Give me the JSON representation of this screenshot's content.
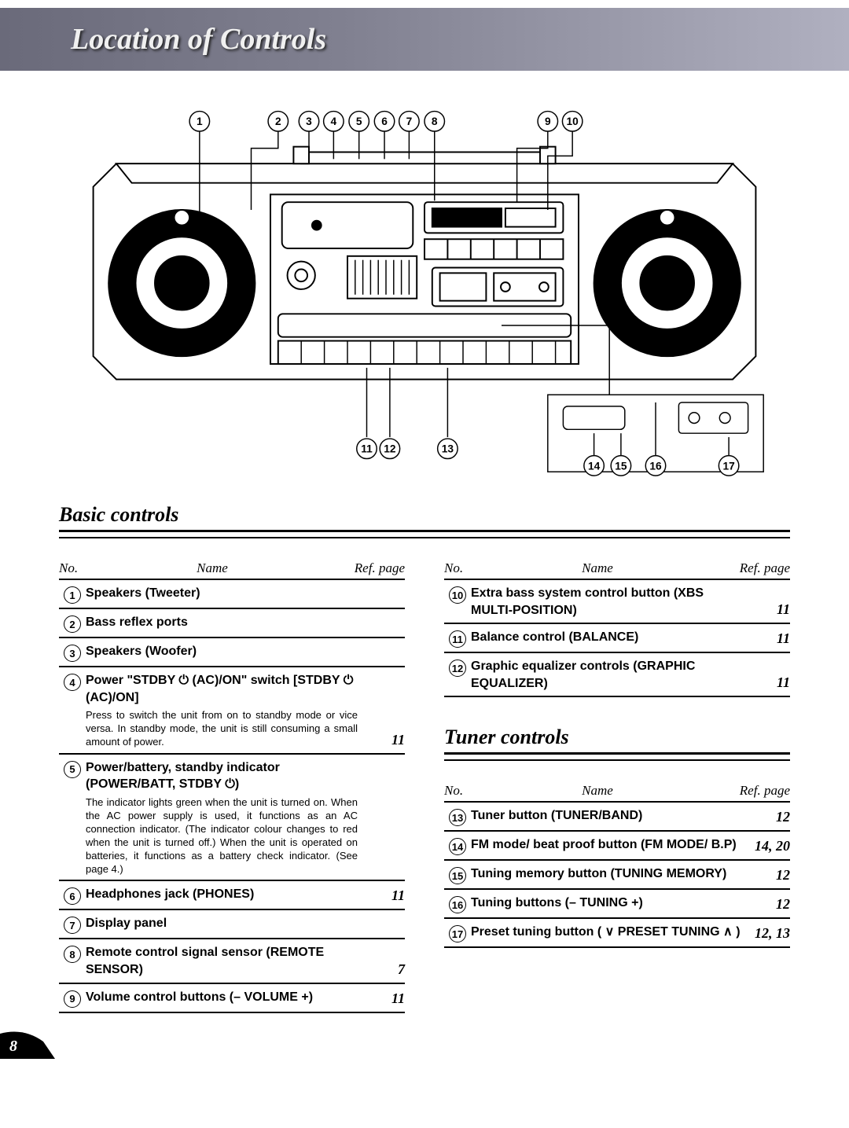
{
  "header": {
    "title": "Location of Controls"
  },
  "diagram": {
    "top_callouts": [
      1,
      2,
      3,
      4,
      5,
      6,
      7,
      8,
      9,
      10
    ],
    "bottom_callouts": [
      11,
      12,
      13,
      14,
      15,
      16,
      17
    ]
  },
  "sections": {
    "basic": {
      "title": "Basic controls",
      "columns_header": {
        "no": "No.",
        "name": "Name",
        "page": "Ref. page"
      },
      "left": [
        {
          "num": 1,
          "name": "Speakers (Tweeter)",
          "page": ""
        },
        {
          "num": 2,
          "name": "Bass reflex ports",
          "page": ""
        },
        {
          "num": 3,
          "name": "Speakers (Woofer)",
          "page": ""
        },
        {
          "num": 4,
          "name": "Power \"STDBY ⏻ (AC)/ON\" switch [STDBY ⏻ (AC)/ON]",
          "page": "11",
          "desc": "Press to switch the unit from on to standby mode or vice versa. In standby mode, the unit is still consuming a small amount of power."
        },
        {
          "num": 5,
          "name": "Power/battery, standby indicator (POWER/BATT, STDBY ⏻)",
          "page": "",
          "desc": "The indicator lights green when the unit is turned on. When the AC power supply is used, it functions as an AC connection indicator. (The indicator colour changes to red when the unit is turned off.) When the unit is operated on batteries, it functions as a battery check indicator. (See page 4.)"
        },
        {
          "num": 6,
          "name": "Headphones jack (PHONES)",
          "page": "11"
        },
        {
          "num": 7,
          "name": "Display panel",
          "page": ""
        },
        {
          "num": 8,
          "name": "Remote control signal sensor (REMOTE SENSOR)",
          "page": "7"
        },
        {
          "num": 9,
          "name": "Volume control buttons (– VOLUME +)",
          "page": "11"
        }
      ],
      "right": [
        {
          "num": 10,
          "name": "Extra bass system control button (XBS MULTI-POSITION)",
          "page": "11"
        },
        {
          "num": 11,
          "name": "Balance control (BALANCE)",
          "page": "11"
        },
        {
          "num": 12,
          "name": "Graphic equalizer controls (GRAPHIC EQUALIZER)",
          "page": "11"
        }
      ]
    },
    "tuner": {
      "title": "Tuner controls",
      "columns_header": {
        "no": "No.",
        "name": "Name",
        "page": "Ref. page"
      },
      "items": [
        {
          "num": 13,
          "name": "Tuner button (TUNER/BAND)",
          "page": "12"
        },
        {
          "num": 14,
          "name": "FM mode/ beat proof button (FM MODE/ B.P)",
          "page": "14, 20"
        },
        {
          "num": 15,
          "name": "Tuning memory button (TUNING MEMORY)",
          "page": "12"
        },
        {
          "num": 16,
          "name": "Tuning buttons (– TUNING +)",
          "page": "12"
        },
        {
          "num": 17,
          "name": "Preset tuning button ( ∨ PRESET TUNING ∧ )",
          "page": "12, 13"
        }
      ]
    }
  },
  "page_number": "8"
}
